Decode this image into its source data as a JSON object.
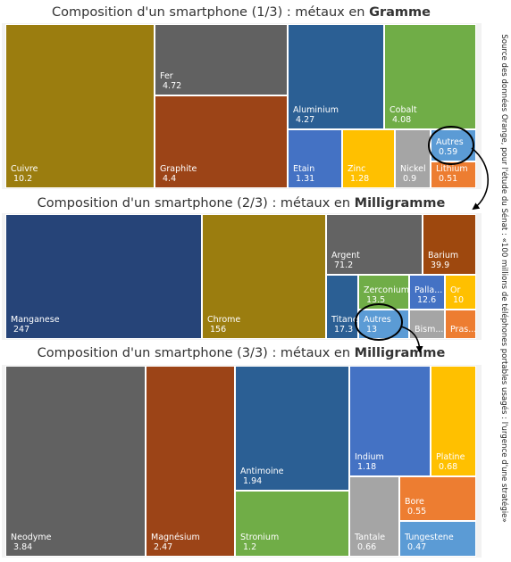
{
  "source_note": "Source des données Orange, pour l'étude du Sénat : «100 millions de téléphones portables usagés : l'urgence d'une stratégie»",
  "colors": {
    "gold": "#9b7d0f",
    "grey": "#616161",
    "rust": "#9c4417",
    "blue": "#2b5f94",
    "green": "#70ad47",
    "lightblue": "#5b9bd5",
    "yellow": "#ffc000",
    "lightgrey": "#a5a5a5",
    "orange": "#ed7d31",
    "navy": "#264478",
    "midblue": "#4472c4",
    "darkgrey": "#636363",
    "brown": "#9e480e"
  },
  "chart_data": [
    {
      "type": "treemap",
      "title_prefix": "Composition d'un smartphone (1/3) : métaux en ",
      "title_unit": "Gramme",
      "items": [
        {
          "name": "Cuivre",
          "value": "10.2",
          "color": "#9b7d0f"
        },
        {
          "name": "Fer",
          "value": "4.72",
          "color": "#616161"
        },
        {
          "name": "Graphite",
          "value": "4.4",
          "color": "#9c4417"
        },
        {
          "name": "Aluminium",
          "value": "4.27",
          "color": "#2b5f94"
        },
        {
          "name": "Cobalt",
          "value": "4.08",
          "color": "#70ad47"
        },
        {
          "name": "Etain",
          "value": "1.31",
          "color": "#4472c4"
        },
        {
          "name": "Zinc",
          "value": "1.28",
          "color": "#ffc000"
        },
        {
          "name": "Nickel",
          "value": "0.9",
          "color": "#a5a5a5"
        },
        {
          "name": "Autres",
          "value": "0.59",
          "color": "#5b9bd5"
        },
        {
          "name": "Lithium",
          "value": "0.51",
          "color": "#ed7d31"
        }
      ]
    },
    {
      "type": "treemap",
      "title_prefix": "Composition d'un smartphone (2/3) : métaux en ",
      "title_unit": "Milligramme",
      "items": [
        {
          "name": "Manganese",
          "value": "247",
          "color": "#264478"
        },
        {
          "name": "Chrome",
          "value": "156",
          "color": "#9b7d0f"
        },
        {
          "name": "Argent",
          "value": "71.2",
          "color": "#636363"
        },
        {
          "name": "Barium",
          "value": "39.9",
          "color": "#9e480e"
        },
        {
          "name": "Titane",
          "value": "17.3",
          "color": "#2b5f94"
        },
        {
          "name": "Zerconium",
          "value": "13.5",
          "color": "#70ad47"
        },
        {
          "name": "Palla...",
          "value": "12.6",
          "color": "#4472c4"
        },
        {
          "name": "Or",
          "value": "10",
          "color": "#ffc000"
        },
        {
          "name": "Autres",
          "value": "13",
          "color": "#5b9bd5"
        },
        {
          "name": "Bism...",
          "value": "",
          "color": "#a5a5a5"
        },
        {
          "name": "Pras...",
          "value": "",
          "color": "#ed7d31"
        }
      ]
    },
    {
      "type": "treemap",
      "title_prefix": "Composition d'un smartphone (3/3) : métaux en ",
      "title_unit": "Milligramme",
      "items": [
        {
          "name": "Neodyme",
          "value": "3.84",
          "color": "#616161"
        },
        {
          "name": "Magnésium",
          "value": "2.47",
          "color": "#9c4417"
        },
        {
          "name": "Antimoine",
          "value": "1.94",
          "color": "#2b5f94"
        },
        {
          "name": "Stronium",
          "value": "1.2",
          "color": "#70ad47"
        },
        {
          "name": "Indium",
          "value": "1.18",
          "color": "#4472c4"
        },
        {
          "name": "Platine",
          "value": "0.68",
          "color": "#ffc000"
        },
        {
          "name": "Tantale",
          "value": "0.66",
          "color": "#a5a5a5"
        },
        {
          "name": "Bore",
          "value": "0.55",
          "color": "#ed7d31"
        },
        {
          "name": "Tungestene",
          "value": "0.47",
          "color": "#5b9bd5"
        }
      ]
    }
  ]
}
